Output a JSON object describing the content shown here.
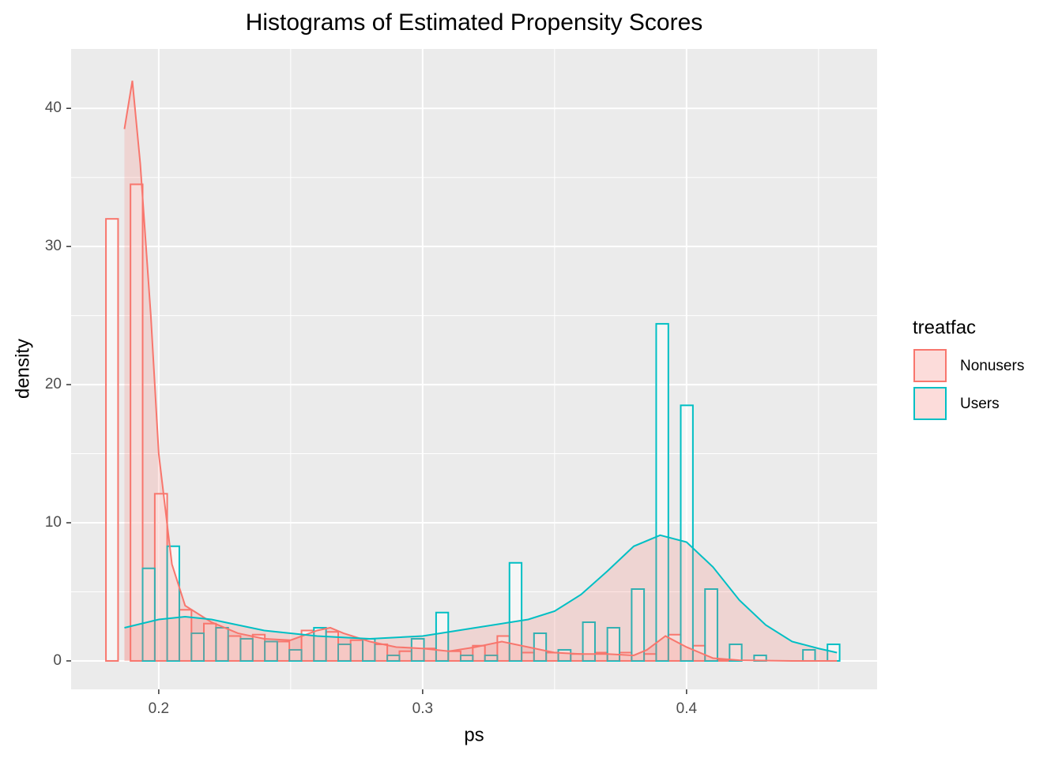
{
  "chart_data": {
    "type": "histogram",
    "title": "Histograms of Estimated Propensity Scores",
    "x_label": "ps",
    "y_label": "density",
    "legend_title": "treatfac",
    "legend_position": "right",
    "grid": true,
    "xlim": [
      0.1668,
      0.4722
    ],
    "ylim": [
      -2.06,
      44.3
    ],
    "xticks": [
      0.2,
      0.3,
      0.4
    ],
    "yticks": [
      0,
      10,
      20,
      30,
      40
    ],
    "bins": [
      0.18,
      0.1846,
      0.1893,
      0.1939,
      0.1985,
      0.2032,
      0.2078,
      0.2124,
      0.2171,
      0.2217,
      0.2263,
      0.231,
      0.2356,
      0.2402,
      0.2449,
      0.2495,
      0.2541,
      0.2588,
      0.2634,
      0.268,
      0.2727,
      0.2773,
      0.2819,
      0.2866,
      0.2912,
      0.2958,
      0.3005,
      0.3051,
      0.3097,
      0.3144,
      0.319,
      0.3236,
      0.3283,
      0.3329,
      0.3375,
      0.3422,
      0.3468,
      0.3514,
      0.3561,
      0.3607,
      0.3653,
      0.37,
      0.3746,
      0.3792,
      0.3839,
      0.3885,
      0.3931,
      0.3978,
      0.4024,
      0.407,
      0.4117,
      0.4163,
      0.4209,
      0.4256,
      0.4302,
      0.4348,
      0.4395,
      0.4441,
      0.4487,
      0.4534,
      0.458
    ],
    "series": [
      {
        "name": "Nonusers",
        "color": "#f8766d",
        "values": [
          32,
          0,
          34.5,
          0,
          12.1,
          0,
          3.7,
          0,
          2.7,
          0,
          1.8,
          0,
          1.9,
          0,
          1.4,
          0,
          2.2,
          0,
          2.1,
          0,
          1.5,
          0,
          1.2,
          0,
          0.7,
          0,
          0.9,
          0,
          0.7,
          0,
          1.1,
          0,
          1.8,
          0,
          0.6,
          0,
          0.6,
          0,
          0.5,
          0,
          0.6,
          0,
          0.6,
          0,
          0.5,
          0,
          1.9,
          0,
          1.1,
          0,
          0.1,
          0,
          0,
          0,
          0,
          0,
          0,
          0,
          0,
          0
        ],
        "density_x": [
          0.187,
          0.19,
          0.193,
          0.197,
          0.2,
          0.205,
          0.21,
          0.22,
          0.23,
          0.24,
          0.25,
          0.26,
          0.265,
          0.27,
          0.28,
          0.29,
          0.3,
          0.31,
          0.32,
          0.33,
          0.34,
          0.35,
          0.36,
          0.37,
          0.38,
          0.385,
          0.392,
          0.4,
          0.41,
          0.42,
          0.44,
          0.457
        ],
        "density": [
          38.5,
          42,
          36,
          25,
          15,
          7,
          4,
          2.8,
          2.0,
          1.6,
          1.5,
          2.2,
          2.4,
          2.0,
          1.4,
          1.0,
          0.9,
          0.7,
          1.0,
          1.4,
          1.0,
          0.6,
          0.5,
          0.5,
          0.4,
          0.8,
          1.8,
          1.0,
          0.2,
          0.05,
          0,
          0
        ]
      },
      {
        "name": "Users",
        "color": "#00bfc4",
        "values": [
          0,
          0,
          0,
          6.7,
          0,
          8.3,
          0,
          2.0,
          0,
          2.4,
          0,
          1.6,
          0,
          1.4,
          0,
          0.8,
          0,
          2.4,
          0,
          1.2,
          0,
          1.6,
          0,
          0.4,
          0,
          1.6,
          0,
          3.5,
          0,
          0.4,
          0,
          0.4,
          0,
          7.1,
          0,
          2.0,
          0,
          0.8,
          0,
          2.8,
          0,
          2.4,
          0,
          5.2,
          0,
          24.4,
          0,
          18.5,
          0,
          5.2,
          0,
          1.2,
          0,
          0.4,
          0,
          0,
          0,
          0.8,
          0,
          1.2
        ],
        "density_x": [
          0.187,
          0.2,
          0.21,
          0.22,
          0.24,
          0.26,
          0.28,
          0.3,
          0.32,
          0.34,
          0.35,
          0.36,
          0.37,
          0.38,
          0.39,
          0.4,
          0.41,
          0.42,
          0.43,
          0.44,
          0.45,
          0.457
        ],
        "density": [
          2.4,
          3.0,
          3.2,
          3.0,
          2.2,
          1.8,
          1.6,
          1.8,
          2.4,
          3.0,
          3.6,
          4.8,
          6.5,
          8.3,
          9.1,
          8.6,
          6.8,
          4.4,
          2.6,
          1.4,
          0.9,
          0.6
        ]
      }
    ]
  }
}
